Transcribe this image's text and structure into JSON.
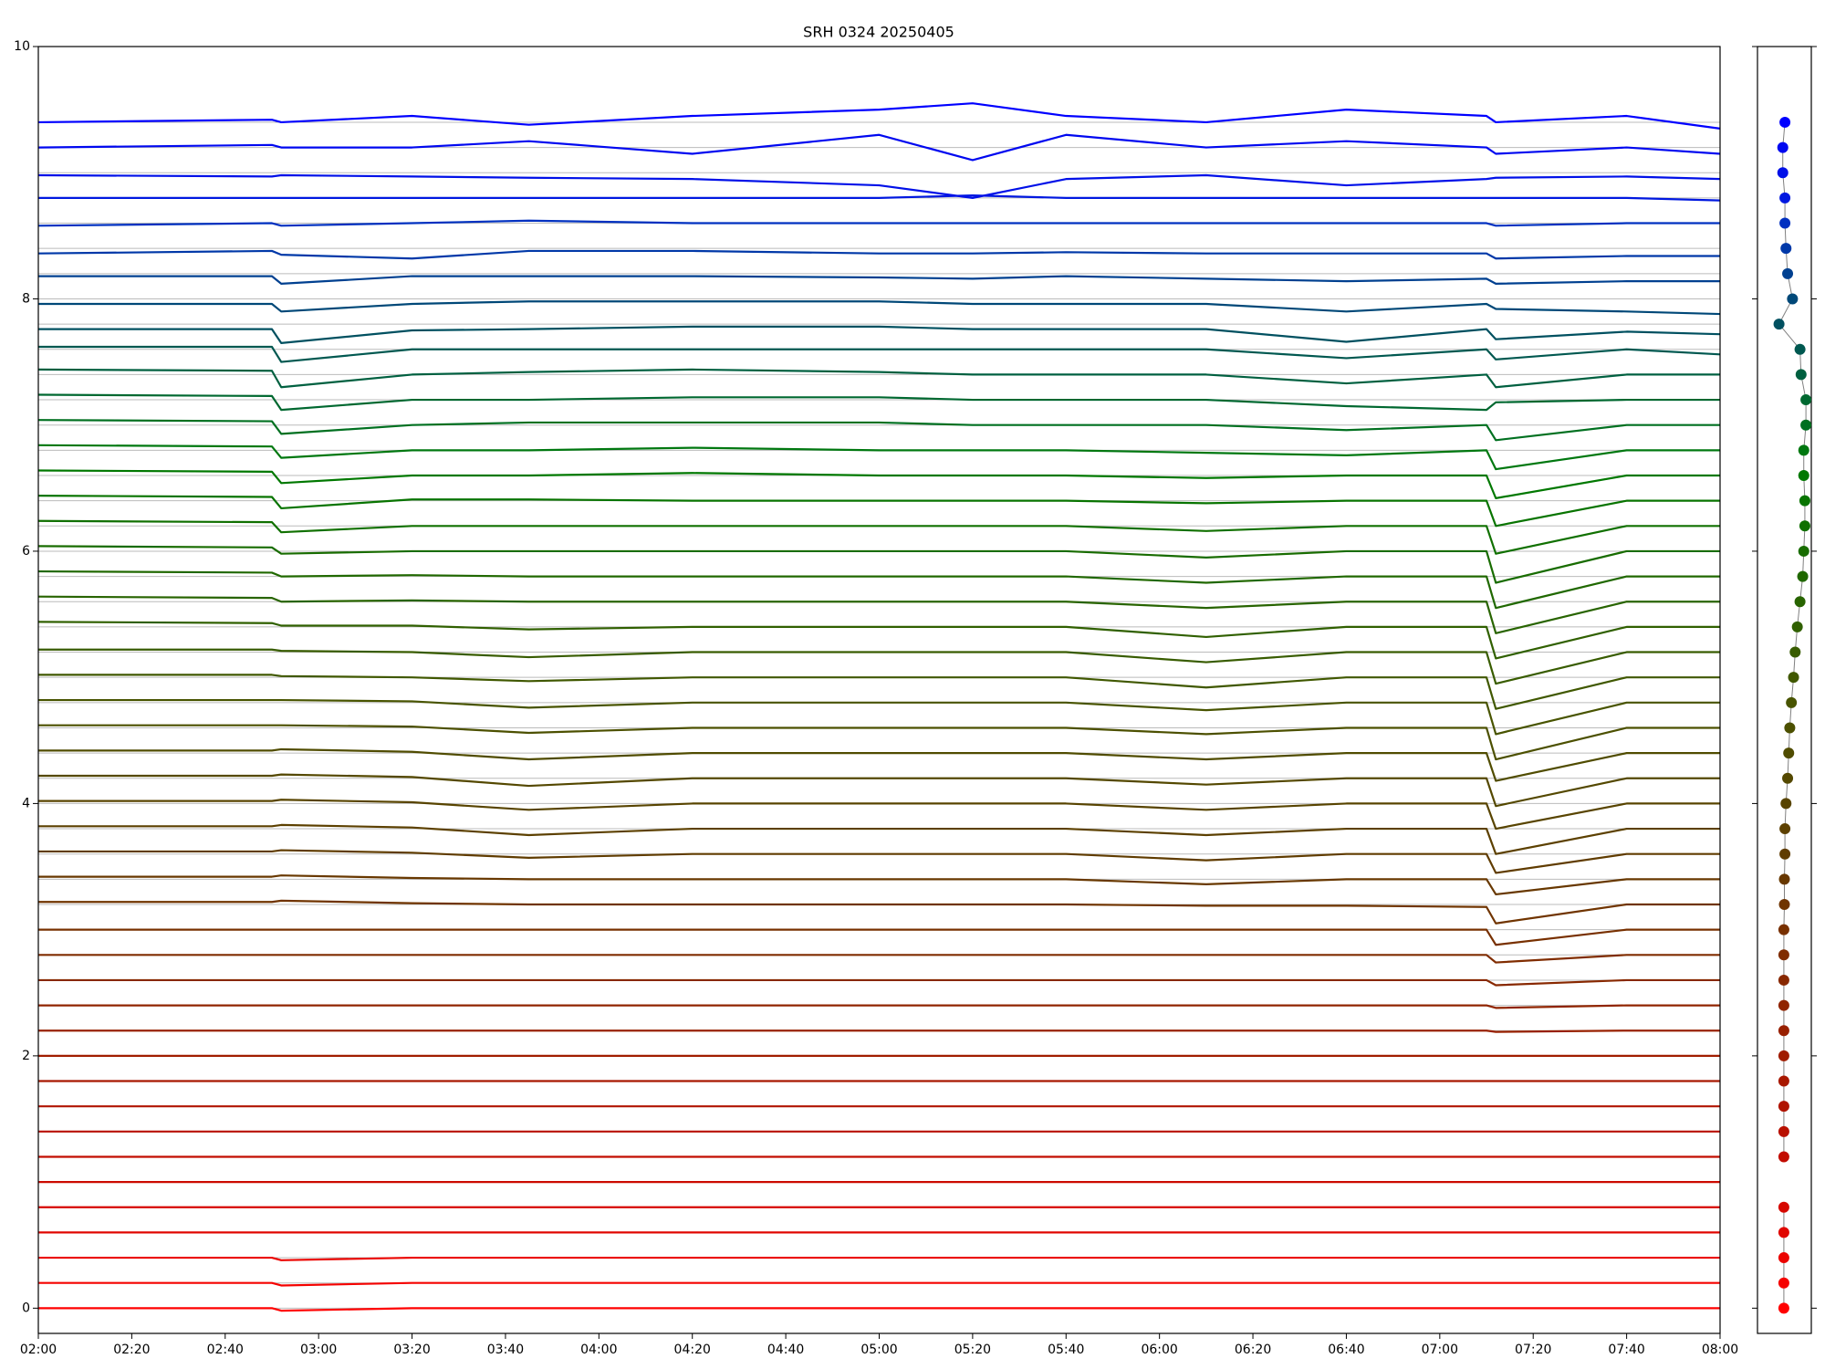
{
  "chart_data": [
    {
      "type": "line",
      "title": "SRH 0324 20250405",
      "x": [
        "02:00",
        "02:50",
        "02:52",
        "03:20",
        "03:45",
        "04:20",
        "05:00",
        "05:20",
        "05:40",
        "06:10",
        "06:40",
        "07:10",
        "07:12",
        "07:40",
        "08:00"
      ],
      "xlim": [
        "02:00",
        "08:00"
      ],
      "xticks": [
        "02:00",
        "02:20",
        "02:40",
        "03:00",
        "03:20",
        "03:40",
        "04:00",
        "04:20",
        "04:40",
        "05:00",
        "05:20",
        "05:40",
        "06:00",
        "06:20",
        "06:40",
        "07:00",
        "07:20",
        "07:40",
        "08:00"
      ],
      "ylim": [
        -0.2,
        10
      ],
      "yticks": [
        0,
        2,
        4,
        6,
        8,
        10
      ],
      "levels": [
        0,
        0.2,
        0.4,
        0.6,
        0.8,
        1.0,
        1.2,
        1.4,
        1.6,
        1.8,
        2.0,
        2.2,
        2.4,
        2.6,
        2.8,
        3.0,
        3.2,
        3.4,
        3.6,
        3.8,
        4.0,
        4.2,
        4.4,
        4.6,
        4.8,
        5.0,
        5.2,
        5.4,
        5.6,
        5.8,
        6.0,
        6.2,
        6.4,
        6.6,
        6.8,
        7.0,
        7.2,
        7.4,
        7.6,
        7.8,
        8.0,
        8.2,
        8.4,
        8.6,
        8.8,
        9.0,
        9.2,
        9.4
      ],
      "series": [
        {
          "color": "#ff0000",
          "values": [
            0,
            0,
            -0.02,
            0,
            0,
            0,
            0,
            0,
            0,
            0,
            0,
            0,
            0,
            0,
            0
          ]
        },
        {
          "color": "#f50200",
          "values": [
            0.2,
            0.2,
            0.18,
            0.2,
            0.2,
            0.2,
            0.2,
            0.2,
            0.2,
            0.2,
            0.2,
            0.2,
            0.2,
            0.2,
            0.2
          ]
        },
        {
          "color": "#eb0400",
          "values": [
            0.4,
            0.4,
            0.38,
            0.4,
            0.4,
            0.4,
            0.4,
            0.4,
            0.4,
            0.4,
            0.4,
            0.4,
            0.4,
            0.4,
            0.4
          ]
        },
        {
          "color": "#e00600",
          "values": [
            0.6,
            0.6,
            0.6,
            0.6,
            0.6,
            0.6,
            0.6,
            0.6,
            0.6,
            0.6,
            0.6,
            0.6,
            0.6,
            0.6,
            0.6
          ]
        },
        {
          "color": "#d60800",
          "values": [
            0.8,
            0.8,
            0.8,
            0.8,
            0.8,
            0.8,
            0.8,
            0.8,
            0.8,
            0.8,
            0.8,
            0.8,
            0.8,
            0.8,
            0.8
          ]
        },
        {
          "color": "#cc0a00",
          "values": [
            1.0,
            1.0,
            1.0,
            1.0,
            1.0,
            1.0,
            1.0,
            1.0,
            1.0,
            1.0,
            1.0,
            1.0,
            1.0,
            1.0,
            1.0
          ]
        },
        {
          "color": "#c20c00",
          "values": [
            1.2,
            1.2,
            1.2,
            1.2,
            1.2,
            1.2,
            1.2,
            1.2,
            1.2,
            1.2,
            1.2,
            1.2,
            1.2,
            1.2,
            1.2
          ]
        },
        {
          "color": "#b81000",
          "values": [
            1.4,
            1.4,
            1.4,
            1.4,
            1.4,
            1.4,
            1.4,
            1.4,
            1.4,
            1.4,
            1.4,
            1.4,
            1.4,
            1.4,
            1.4
          ]
        },
        {
          "color": "#b01400",
          "values": [
            1.6,
            1.6,
            1.6,
            1.6,
            1.6,
            1.6,
            1.6,
            1.6,
            1.6,
            1.6,
            1.6,
            1.6,
            1.6,
            1.6,
            1.6
          ]
        },
        {
          "color": "#a81800",
          "values": [
            1.8,
            1.8,
            1.8,
            1.8,
            1.8,
            1.8,
            1.8,
            1.8,
            1.8,
            1.8,
            1.8,
            1.8,
            1.8,
            1.8,
            1.8
          ]
        },
        {
          "color": "#a01c00",
          "values": [
            2.0,
            2.0,
            2.0,
            2.0,
            2.0,
            2.0,
            2.0,
            2.0,
            2.0,
            2.0,
            2.0,
            2.0,
            2.0,
            2.0,
            2.0
          ]
        },
        {
          "color": "#982000",
          "values": [
            2.2,
            2.2,
            2.2,
            2.2,
            2.2,
            2.2,
            2.2,
            2.2,
            2.2,
            2.2,
            2.2,
            2.2,
            2.19,
            2.2,
            2.2
          ]
        },
        {
          "color": "#902400",
          "values": [
            2.4,
            2.4,
            2.4,
            2.4,
            2.4,
            2.4,
            2.4,
            2.4,
            2.4,
            2.4,
            2.4,
            2.4,
            2.38,
            2.4,
            2.4
          ]
        },
        {
          "color": "#882800",
          "values": [
            2.6,
            2.6,
            2.6,
            2.6,
            2.6,
            2.6,
            2.6,
            2.6,
            2.6,
            2.6,
            2.6,
            2.6,
            2.56,
            2.6,
            2.6
          ]
        },
        {
          "color": "#802c00",
          "values": [
            2.8,
            2.8,
            2.8,
            2.8,
            2.8,
            2.8,
            2.8,
            2.8,
            2.8,
            2.8,
            2.8,
            2.8,
            2.74,
            2.8,
            2.8
          ]
        },
        {
          "color": "#783000",
          "values": [
            3.0,
            3.0,
            3.0,
            3.0,
            3.0,
            3.0,
            3.0,
            3.0,
            3.0,
            3.0,
            3.0,
            3.0,
            2.88,
            3.0,
            3.0
          ]
        },
        {
          "color": "#703400",
          "values": [
            3.22,
            3.22,
            3.23,
            3.21,
            3.2,
            3.2,
            3.2,
            3.2,
            3.2,
            3.19,
            3.19,
            3.18,
            3.05,
            3.2,
            3.2
          ]
        },
        {
          "color": "#683800",
          "values": [
            3.42,
            3.42,
            3.43,
            3.41,
            3.4,
            3.4,
            3.4,
            3.4,
            3.4,
            3.36,
            3.4,
            3.4,
            3.28,
            3.4,
            3.4
          ]
        },
        {
          "color": "#603c00",
          "values": [
            3.62,
            3.62,
            3.63,
            3.61,
            3.57,
            3.6,
            3.6,
            3.6,
            3.6,
            3.55,
            3.6,
            3.6,
            3.45,
            3.6,
            3.6
          ]
        },
        {
          "color": "#5c4000",
          "values": [
            3.82,
            3.82,
            3.83,
            3.81,
            3.75,
            3.8,
            3.8,
            3.8,
            3.8,
            3.75,
            3.8,
            3.8,
            3.6,
            3.8,
            3.8
          ]
        },
        {
          "color": "#584400",
          "values": [
            4.02,
            4.02,
            4.03,
            4.01,
            3.95,
            4.0,
            4.0,
            4.0,
            4.0,
            3.95,
            4.0,
            4.0,
            3.8,
            4.0,
            4.0
          ]
        },
        {
          "color": "#544800",
          "values": [
            4.22,
            4.22,
            4.23,
            4.21,
            4.14,
            4.2,
            4.2,
            4.2,
            4.2,
            4.15,
            4.2,
            4.2,
            3.98,
            4.2,
            4.2
          ]
        },
        {
          "color": "#504c00",
          "values": [
            4.42,
            4.42,
            4.43,
            4.41,
            4.35,
            4.4,
            4.4,
            4.4,
            4.4,
            4.35,
            4.4,
            4.4,
            4.18,
            4.4,
            4.4
          ]
        },
        {
          "color": "#4c5000",
          "values": [
            4.62,
            4.62,
            4.62,
            4.61,
            4.56,
            4.6,
            4.6,
            4.6,
            4.6,
            4.55,
            4.6,
            4.6,
            4.35,
            4.6,
            4.6
          ]
        },
        {
          "color": "#485400",
          "values": [
            4.82,
            4.82,
            4.82,
            4.81,
            4.76,
            4.8,
            4.8,
            4.8,
            4.8,
            4.74,
            4.8,
            4.8,
            4.55,
            4.8,
            4.8
          ]
        },
        {
          "color": "#405800",
          "values": [
            5.02,
            5.02,
            5.01,
            5.0,
            4.97,
            5.0,
            5.0,
            5.0,
            5.0,
            4.92,
            5.0,
            5.0,
            4.75,
            5.0,
            5.0
          ]
        },
        {
          "color": "#385c00",
          "values": [
            5.22,
            5.22,
            5.21,
            5.2,
            5.16,
            5.2,
            5.2,
            5.2,
            5.2,
            5.12,
            5.2,
            5.2,
            4.95,
            5.2,
            5.2
          ]
        },
        {
          "color": "#306000",
          "values": [
            5.44,
            5.43,
            5.41,
            5.41,
            5.38,
            5.4,
            5.4,
            5.4,
            5.4,
            5.32,
            5.4,
            5.4,
            5.15,
            5.4,
            5.4
          ]
        },
        {
          "color": "#286400",
          "values": [
            5.64,
            5.63,
            5.6,
            5.61,
            5.6,
            5.6,
            5.6,
            5.6,
            5.6,
            5.55,
            5.6,
            5.6,
            5.35,
            5.6,
            5.6
          ]
        },
        {
          "color": "#206800",
          "values": [
            5.84,
            5.83,
            5.8,
            5.81,
            5.8,
            5.8,
            5.8,
            5.8,
            5.8,
            5.75,
            5.8,
            5.8,
            5.55,
            5.8,
            5.8
          ]
        },
        {
          "color": "#186c00",
          "values": [
            6.04,
            6.03,
            5.98,
            6.0,
            6.0,
            6.0,
            6.0,
            6.0,
            6.0,
            5.95,
            6.0,
            6.0,
            5.75,
            6.0,
            6.0
          ]
        },
        {
          "color": "#107000",
          "values": [
            6.24,
            6.23,
            6.15,
            6.2,
            6.2,
            6.2,
            6.2,
            6.2,
            6.2,
            6.16,
            6.2,
            6.2,
            5.98,
            6.2,
            6.2
          ]
        },
        {
          "color": "#087400",
          "values": [
            6.44,
            6.43,
            6.34,
            6.41,
            6.41,
            6.4,
            6.4,
            6.4,
            6.4,
            6.38,
            6.4,
            6.4,
            6.2,
            6.4,
            6.4
          ]
        },
        {
          "color": "#007800",
          "values": [
            6.64,
            6.63,
            6.54,
            6.6,
            6.6,
            6.62,
            6.6,
            6.6,
            6.6,
            6.58,
            6.6,
            6.6,
            6.42,
            6.6,
            6.6
          ]
        },
        {
          "color": "#007810",
          "values": [
            6.84,
            6.83,
            6.74,
            6.8,
            6.8,
            6.82,
            6.8,
            6.8,
            6.8,
            6.78,
            6.76,
            6.8,
            6.65,
            6.8,
            6.8
          ]
        },
        {
          "color": "#007020",
          "values": [
            7.04,
            7.03,
            6.93,
            7.0,
            7.02,
            7.02,
            7.02,
            7.0,
            7.0,
            7.0,
            6.96,
            7.0,
            6.88,
            7.0,
            7.0
          ]
        },
        {
          "color": "#006830",
          "values": [
            7.24,
            7.23,
            7.12,
            7.2,
            7.2,
            7.22,
            7.22,
            7.2,
            7.2,
            7.2,
            7.15,
            7.12,
            7.18,
            7.2,
            7.2
          ]
        },
        {
          "color": "#006040",
          "values": [
            7.44,
            7.43,
            7.3,
            7.4,
            7.42,
            7.44,
            7.42,
            7.4,
            7.4,
            7.4,
            7.33,
            7.4,
            7.3,
            7.4,
            7.4
          ]
        },
        {
          "color": "#005850",
          "values": [
            7.62,
            7.62,
            7.5,
            7.6,
            7.6,
            7.6,
            7.6,
            7.6,
            7.6,
            7.6,
            7.53,
            7.6,
            7.52,
            7.6,
            7.56
          ]
        },
        {
          "color": "#005060",
          "values": [
            7.76,
            7.76,
            7.65,
            7.75,
            7.76,
            7.78,
            7.78,
            7.76,
            7.76,
            7.76,
            7.66,
            7.76,
            7.68,
            7.74,
            7.72
          ]
        },
        {
          "color": "#004878",
          "values": [
            7.96,
            7.96,
            7.9,
            7.96,
            7.98,
            7.98,
            7.98,
            7.96,
            7.96,
            7.96,
            7.9,
            7.96,
            7.92,
            7.9,
            7.88
          ]
        },
        {
          "color": "#004090",
          "values": [
            8.18,
            8.18,
            8.12,
            8.18,
            8.18,
            8.18,
            8.17,
            8.16,
            8.18,
            8.16,
            8.14,
            8.16,
            8.12,
            8.14,
            8.14
          ]
        },
        {
          "color": "#0038a8",
          "values": [
            8.36,
            8.38,
            8.35,
            8.32,
            8.38,
            8.38,
            8.36,
            8.36,
            8.37,
            8.36,
            8.36,
            8.36,
            8.32,
            8.34,
            8.34
          ]
        },
        {
          "color": "#0030c0",
          "values": [
            8.58,
            8.6,
            8.58,
            8.6,
            8.62,
            8.6,
            8.6,
            8.6,
            8.6,
            8.6,
            8.6,
            8.6,
            8.58,
            8.6,
            8.6
          ]
        },
        {
          "color": "#0018e0",
          "values": [
            8.8,
            8.8,
            8.8,
            8.8,
            8.8,
            8.8,
            8.8,
            8.82,
            8.8,
            8.8,
            8.8,
            8.8,
            8.8,
            8.8,
            8.78
          ]
        },
        {
          "color": "#0010e8",
          "values": [
            8.98,
            8.97,
            8.98,
            8.97,
            8.96,
            8.95,
            8.9,
            8.8,
            8.95,
            8.98,
            8.9,
            8.95,
            8.96,
            8.97,
            8.95
          ]
        },
        {
          "color": "#0008f0",
          "values": [
            9.2,
            9.22,
            9.2,
            9.2,
            9.25,
            9.15,
            9.3,
            9.1,
            9.3,
            9.2,
            9.25,
            9.2,
            9.15,
            9.2,
            9.15
          ]
        },
        {
          "color": "#0000ff",
          "values": [
            9.4,
            9.42,
            9.4,
            9.45,
            9.38,
            9.45,
            9.5,
            9.55,
            9.45,
            9.4,
            9.5,
            9.45,
            9.4,
            9.45,
            9.35
          ]
        }
      ]
    },
    {
      "type": "scatter",
      "xlim": [
        0,
        1
      ],
      "ylim": [
        -0.2,
        10
      ],
      "yticks": [
        0,
        2,
        4,
        6,
        8,
        10
      ],
      "line_color": "#808080",
      "x": [
        0.49,
        0.49,
        0.49,
        0.49,
        0.49,
        null,
        0.49,
        0.49,
        0.49,
        0.49,
        0.49,
        0.49,
        0.49,
        0.49,
        0.49,
        0.49,
        0.5,
        0.5,
        0.51,
        0.51,
        0.53,
        0.56,
        0.58,
        0.6,
        0.63,
        0.67,
        0.7,
        0.74,
        0.79,
        0.84,
        0.86,
        0.88,
        0.88,
        0.86,
        0.86,
        0.9,
        0.9,
        0.81,
        0.79,
        0.4,
        0.65,
        0.56,
        0.53,
        0.51,
        0.51,
        0.47,
        0.47,
        0.51
      ],
      "y": [
        0,
        0.2,
        0.4,
        0.6,
        0.8,
        1.0,
        1.2,
        1.4,
        1.6,
        1.8,
        2.0,
        2.2,
        2.4,
        2.6,
        2.8,
        3.0,
        3.2,
        3.4,
        3.6,
        3.8,
        4.0,
        4.2,
        4.4,
        4.6,
        4.8,
        5.0,
        5.2,
        5.4,
        5.6,
        5.8,
        6.0,
        6.2,
        6.4,
        6.6,
        6.8,
        7.0,
        7.2,
        7.4,
        7.6,
        7.8,
        8.0,
        8.2,
        8.4,
        8.6,
        8.8,
        9.0,
        9.2,
        9.4
      ]
    }
  ]
}
